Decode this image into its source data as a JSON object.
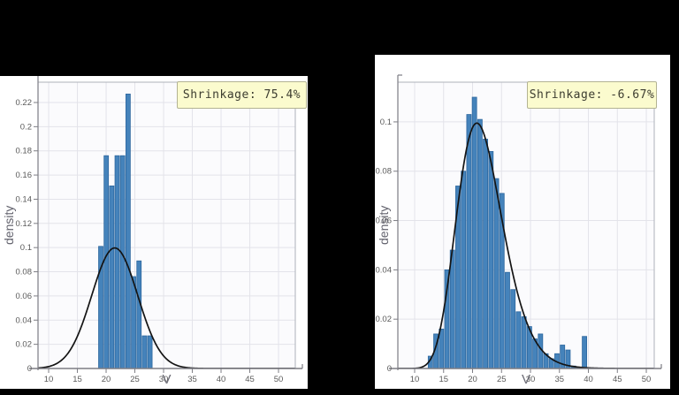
{
  "page": {
    "background": "#000000"
  },
  "chart_data": [
    {
      "type": "bar",
      "subtype": "histogram-with-density-curve",
      "annotation": "Shrinkage: 75.4%",
      "xlabel": "V",
      "ylabel": "density",
      "x_ticks": [
        10,
        15,
        20,
        25,
        30,
        35,
        40,
        45,
        50
      ],
      "y_ticks": [
        0,
        0.02,
        0.04,
        0.06,
        0.08,
        0.1,
        0.12,
        0.14,
        0.16,
        0.18,
        0.2,
        0.22
      ],
      "xlim": [
        8.15,
        52.92
      ],
      "ylim": [
        0,
        0.2368
      ],
      "grid": true,
      "legend": "none",
      "bin_start": 18.6,
      "bin_width": 0.95,
      "bar_values": [
        0.101,
        0.176,
        0.151,
        0.176,
        0.176,
        0.227,
        0.076,
        0.089,
        0.027,
        0.027
      ],
      "curve": {
        "shape": "normal",
        "mu": 21.5,
        "sigma": 4,
        "peak": 0.0997
      },
      "colors": {
        "bar": "#4583bb",
        "bar_edge": "#2d679e",
        "curve": "#141414",
        "grid": "#e3e3ea",
        "plot_bg": "#fbfbfd",
        "axis": "#7d7d84",
        "tick_text": "#5a5a5a",
        "border": "#aeb2ba"
      }
    },
    {
      "type": "bar",
      "subtype": "histogram-with-density-curve",
      "annotation": "Shrinkage: -6.67%",
      "xlabel": "V",
      "ylabel": "density",
      "x_ticks": [
        10,
        15,
        20,
        25,
        30,
        35,
        40,
        45,
        50
      ],
      "y_ticks": [
        0,
        0.02,
        0.04,
        0.06,
        0.08,
        0.1
      ],
      "xlim": [
        7.1,
        51.37
      ],
      "ylim": [
        0,
        0.1161
      ],
      "grid": true,
      "legend": "none",
      "bin_start": 12.25,
      "bin_width": 0.95,
      "bar_values": [
        0.005,
        0.014,
        0.016,
        0.04,
        0.048,
        0.074,
        0.08,
        0.103,
        0.11,
        0.101,
        0.093,
        0.088,
        0.077,
        0.071,
        0.039,
        0.032,
        0.023,
        0.021,
        0.017,
        0.012,
        0.014,
        0.006,
        0.004,
        0.006,
        0.0095,
        0.0075,
        0.001,
        0.0005,
        0.013
      ],
      "curve": {
        "shape": "lognormal",
        "mu_log": 3.0681,
        "sigma_log": 0.19,
        "peak": 0.0995
      },
      "colors": {
        "bar": "#4583bb",
        "bar_edge": "#2d679e",
        "curve": "#141414",
        "grid": "#e3e3ea",
        "plot_bg": "#fbfbfd",
        "axis": "#7d7d84",
        "tick_text": "#5a5a5a",
        "border": "#aeb2ba"
      }
    }
  ]
}
